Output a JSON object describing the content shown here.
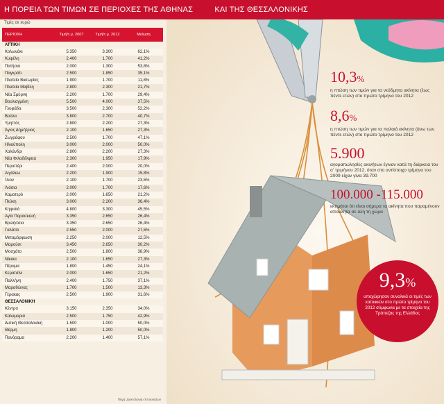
{
  "banner": {
    "title_left": "Η ΠΟΡΕΙΑ ΤΩΝ ΤΙΜΩΝ ΣΕ ΠΕΡΙΟΧΕΣ ΤΗΣ ΑΘΗΝΑΣ",
    "title_right": "ΚΑΙ ΤΗΣ ΘΕΣΣΑΛΟΝΙΚΗΣ"
  },
  "table": {
    "note": "Τιμές σε ευρώ",
    "headers": [
      "ΠΕΡΙΟΧΗ",
      "Τιμή/τ.μ. 2007",
      "Τιμή/τ.μ. 2012",
      "Μείωση"
    ],
    "section_attica": "ΑΤΤΙΚΗ",
    "attica_rows": [
      [
        "Κολωνάκι",
        "5.350",
        "3.300",
        "62,1%"
      ],
      [
        "Κυψέλη",
        "2.400",
        "1.700",
        "41,2%"
      ],
      [
        "Πατήσια",
        "2.000",
        "1.300",
        "53,8%"
      ],
      [
        "Παγκράτι",
        "2.500",
        "1.850",
        "35,1%"
      ],
      [
        "Πλατεία Βικτωρίας",
        "1.900",
        "1.700",
        "11,8%"
      ],
      [
        "Πλατεία Μαβίλη",
        "2.800",
        "2.300",
        "21,7%"
      ],
      [
        "Νέα Σμύρνη",
        "2.200",
        "1.700",
        "29,4%"
      ],
      [
        "Βουλιαγμένη",
        "5.500",
        "4.000",
        "37,5%"
      ],
      [
        "Γλυφάδα",
        "3.500",
        "2.300",
        "52,2%"
      ],
      [
        "Βούλα",
        "3.800",
        "2.700",
        "40,7%"
      ],
      [
        "Υμηττός",
        "2.800",
        "2.200",
        "27,3%"
      ],
      [
        "Άγιος Δημήτριος",
        "2.100",
        "1.650",
        "27,3%"
      ],
      [
        "Ζωγράφου",
        "2.500",
        "1.700",
        "47,1%"
      ],
      [
        "Ηλιούπολη",
        "3.000",
        "2.000",
        "50,0%"
      ],
      [
        "Χαλάνδρι",
        "2.800",
        "2.200",
        "27,3%"
      ],
      [
        "Νέα Φιλαδέλφεια",
        "2.300",
        "1.950",
        "17,9%"
      ],
      [
        "Περιστέρι",
        "2.400",
        "2.000",
        "20,0%"
      ],
      [
        "Αιγάλεω",
        "2.200",
        "1.900",
        "15,8%"
      ],
      [
        "Ίλιον",
        "2.100",
        "1.700",
        "23,5%"
      ],
      [
        "Λιόσια",
        "2.000",
        "1.700",
        "17,6%"
      ],
      [
        "Καματερό",
        "2.000",
        "1.650",
        "21,2%"
      ],
      [
        "Πεύκη",
        "3.000",
        "2.200",
        "36,4%"
      ],
      [
        "Κηφισιά",
        "4.800",
        "3.300",
        "45,5%"
      ],
      [
        "Αγία Παρασκευή",
        "3.350",
        "2.650",
        "26,4%"
      ],
      [
        "Βριλήσσια",
        "3.350",
        "2.650",
        "26,4%"
      ],
      [
        "Γαλάτσι",
        "2.550",
        "2.000",
        "27,5%"
      ],
      [
        "Μεταμόρφωση",
        "2.250",
        "2.000",
        "12,5%"
      ],
      [
        "Μαρούσι",
        "3.450",
        "2.650",
        "30,2%"
      ],
      [
        "Μοσχάτο",
        "2.500",
        "1.800",
        "38,9%"
      ],
      [
        "Νίκαια",
        "2.100",
        "1.650",
        "27,3%"
      ],
      [
        "Πέραμα",
        "1.800",
        "1.450",
        "24,1%"
      ],
      [
        "Κερατσίνι",
        "2.000",
        "1.650",
        "21,2%"
      ],
      [
        "Παλλήνη",
        "2.400",
        "1.750",
        "37,1%"
      ],
      [
        "Μαραθώνας",
        "1.700",
        "1.500",
        "13,3%"
      ],
      [
        "Γέρακας",
        "2.500",
        "1.900",
        "31,6%"
      ]
    ],
    "section_thess": "ΘΕΣΣΑΛΟΝΙΚΗ",
    "thess_rows": [
      [
        "Κέντρο",
        "3.150",
        "2.350",
        "34,0%"
      ],
      [
        "Καλαμαριά",
        "2.500",
        "1.750",
        "42,9%"
      ],
      [
        "Δυτική Θεσσαλονίκη",
        "1.500",
        "1.000",
        "50,0%"
      ],
      [
        "Θέρμη",
        "1.800",
        "1.200",
        "50,0%"
      ],
      [
        "Πανόραμα",
        "2.200",
        "1.400",
        "57,1%"
      ]
    ],
    "source": "Πηγή: Δεικτολόγια επί ακινήτων"
  },
  "stats": [
    {
      "value": "10,3",
      "suffix": "%",
      "text": "η πτώση των τιμών για τα νεόδμητα ακίνητα (έως πέντε ετών) στο πρώτο τρίμηνο του 2012"
    },
    {
      "value": "8,6",
      "suffix": "%",
      "text": "η πτώση των τιμών για τα παλαιά ακίνητα (άνω των πέντε ετών) στο πρώτο τρίμηνο του 2012"
    },
    {
      "value": "5.900",
      "suffix": "",
      "text": "αγοραπωλησίες ακινήτων έγιναν κατά τη διάρκεια του α' τριμήνου 2012, όταν στο αντίστοιχο τρίμηνο του 2009 είχαν γίνει 39.700"
    },
    {
      "value": "100.000 -115.000",
      "suffix": "",
      "text": "εκτιμάται ότι είναι σήμερα τα ακίνητα που παραμένουν απούλητα σε όλη τη χώρα"
    }
  ],
  "circle": {
    "value": "9,3",
    "suffix": "%",
    "text": "υποχώρησαν συνολικά οι τιμές των κατοικιών στο πρώτο τρίμηνο του 2012 σύμφωνα με τα στοιχεία της Τράπεζας της Ελλάδος"
  },
  "colors": {
    "accent": "#c8102e",
    "background": "#f7efe2",
    "house_wall": "#e79a5c",
    "roof": "#a9b3b2"
  }
}
